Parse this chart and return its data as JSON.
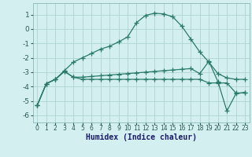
{
  "xlabel": "Humidex (Indice chaleur)",
  "ylabel": "",
  "background_color": "#d4efef",
  "grid_color": "#aed4d4",
  "line_color": "#2a7a6a",
  "tick_color": "#2a5a5a",
  "label_color": "#1a1a6a",
  "xlim": [
    -0.5,
    23.5
  ],
  "ylim": [
    -6.5,
    1.8
  ],
  "yticks": [
    1,
    0,
    -1,
    -2,
    -3,
    -4,
    -5,
    -6
  ],
  "xticks": [
    0,
    1,
    2,
    3,
    4,
    5,
    6,
    7,
    8,
    9,
    10,
    11,
    12,
    13,
    14,
    15,
    16,
    17,
    18,
    19,
    20,
    21,
    22,
    23
  ],
  "series": [
    {
      "x": [
        0,
        1,
        2,
        3,
        4,
        5,
        6,
        7,
        8,
        9,
        10,
        11,
        12,
        13,
        14,
        15,
        16,
        17,
        18,
        19,
        20,
        21,
        22,
        23
      ],
      "y": [
        -5.3,
        -3.8,
        -3.5,
        -2.9,
        -2.3,
        -2.0,
        -1.7,
        -1.4,
        -1.2,
        -0.9,
        -0.55,
        0.45,
        0.95,
        1.1,
        1.05,
        0.85,
        0.2,
        -0.7,
        -1.6,
        -2.3,
        -3.1,
        -3.4,
        -3.5,
        -3.5
      ]
    },
    {
      "x": [
        0,
        1,
        2,
        3,
        4,
        5,
        6,
        7,
        8,
        9,
        10,
        11,
        12,
        13,
        14,
        15,
        16,
        17,
        18,
        19,
        20,
        21,
        22,
        23
      ],
      "y": [
        -5.3,
        -3.8,
        -3.5,
        -2.95,
        -3.35,
        -3.35,
        -3.3,
        -3.25,
        -3.2,
        -3.15,
        -3.1,
        -3.05,
        -3.0,
        -2.95,
        -2.9,
        -2.85,
        -2.8,
        -2.75,
        -3.1,
        -2.25,
        -3.65,
        -5.7,
        -4.5,
        -4.4
      ]
    },
    {
      "x": [
        0,
        1,
        2,
        3,
        4,
        5,
        6,
        7,
        8,
        9,
        10,
        11,
        12,
        13,
        14,
        15,
        16,
        17,
        18,
        19,
        20,
        21,
        22,
        23
      ],
      "y": [
        -5.3,
        -3.8,
        -3.5,
        -2.95,
        -3.35,
        -3.5,
        -3.5,
        -3.5,
        -3.5,
        -3.5,
        -3.5,
        -3.5,
        -3.5,
        -3.5,
        -3.5,
        -3.5,
        -3.5,
        -3.5,
        -3.5,
        -3.75,
        -3.75,
        -3.75,
        -4.45,
        -4.45
      ]
    }
  ],
  "linewidth": 0.9,
  "markersize": 4,
  "marker": "+"
}
